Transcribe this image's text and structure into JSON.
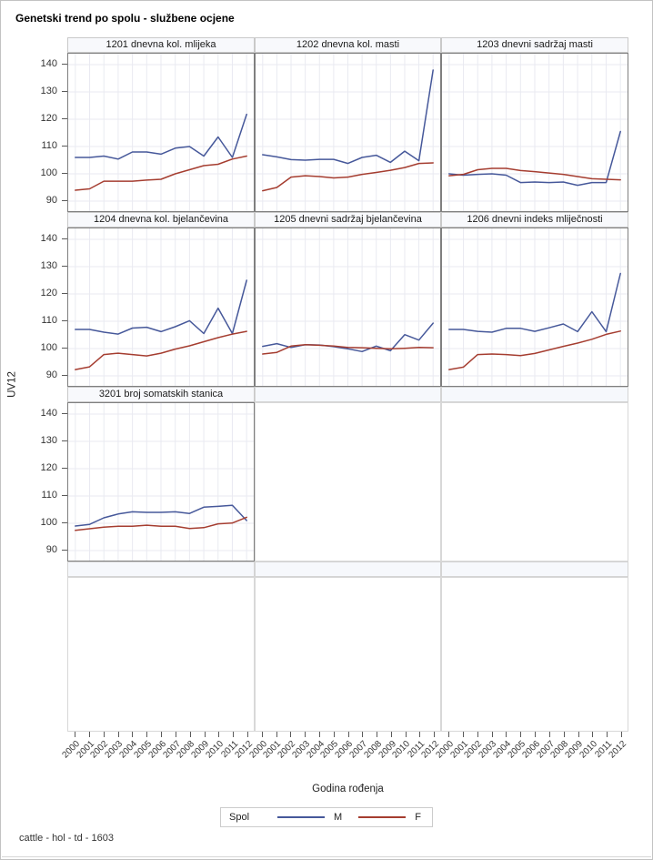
{
  "title": "Genetski trend po spolu - službene ocjene",
  "footer": "cattle - hol - td - 1603",
  "y_axis": {
    "label": "UV12",
    "ticks": [
      140,
      130,
      120,
      110,
      100,
      90
    ]
  },
  "x_axis": {
    "label": "Godina rođenja",
    "years": [
      "2000",
      "2001",
      "2002",
      "2003",
      "2004",
      "2005",
      "2006",
      "2007",
      "2008",
      "2009",
      "2010",
      "2011",
      "2012"
    ]
  },
  "legend": {
    "title": "Spol",
    "entries": [
      {
        "label": "M",
        "color": "#46589A"
      },
      {
        "label": "F",
        "color": "#A53D30"
      }
    ]
  },
  "colors": {
    "series_m": "#46589A",
    "series_f": "#A53D30",
    "gridline": "#e9eaf1",
    "panel_border": "#7f7f7f",
    "header_bg": "#f8f9fc",
    "tick": "#5a5a5a"
  },
  "chart_data": {
    "type": "line",
    "layout": "panel-grid 3 columns x 4 rows (5 empty cells)",
    "categories": [
      "2000",
      "2001",
      "2002",
      "2003",
      "2004",
      "2005",
      "2006",
      "2007",
      "2008",
      "2009",
      "2010",
      "2011",
      "2012"
    ],
    "xlabel": "Godina rođenja",
    "ylabel": "UV12",
    "ylim": [
      85.7,
      144
    ],
    "yticks": [
      90,
      100,
      110,
      120,
      130,
      140
    ],
    "grid": true,
    "legend_position": "bottom",
    "panels": [
      {
        "title": "1201 dnevna kol. mlijeka",
        "grid_pos": [
          0,
          0
        ],
        "series": [
          {
            "name": "M",
            "color": "#46589A",
            "values": [
              106,
              106,
              106.5,
              105.4,
              108,
              108,
              107.2,
              109.4,
              110,
              106.5,
              113.5,
              106,
              121.8
            ]
          },
          {
            "name": "F",
            "color": "#A53D30",
            "values": [
              94,
              94.5,
              97.3,
              97.3,
              97.3,
              97.7,
              98,
              100,
              101.5,
              103,
              103.5,
              105.4,
              106.5
            ]
          }
        ]
      },
      {
        "title": "1202 dnevna kol. masti",
        "grid_pos": [
          0,
          1
        ],
        "series": [
          {
            "name": "M",
            "color": "#46589A",
            "values": [
              107,
              106.2,
              105.2,
              105,
              105.3,
              105.3,
              103.8,
              106,
              106.8,
              104.2,
              108.3,
              104.8,
              138
            ]
          },
          {
            "name": "F",
            "color": "#A53D30",
            "values": [
              93.8,
              95,
              98.8,
              99.3,
              99,
              98.5,
              98.8,
              99.8,
              100.5,
              101.3,
              102.3,
              103.8,
              104
            ]
          }
        ]
      },
      {
        "title": "1203 dnevni sadržaj masti",
        "grid_pos": [
          0,
          2
        ],
        "series": [
          {
            "name": "M",
            "color": "#46589A",
            "values": [
              100,
              99.5,
              99.8,
              100,
              99.5,
              96.8,
              97,
              96.8,
              97,
              95.8,
              96.8,
              96.8,
              115.5
            ]
          },
          {
            "name": "F",
            "color": "#A53D30",
            "values": [
              99.3,
              99.8,
              101.5,
              102,
              102,
              101.2,
              100.8,
              100.3,
              99.8,
              99,
              98.2,
              98,
              97.8
            ]
          }
        ]
      },
      {
        "title": "1204 dnevna kol. bjelančevina",
        "grid_pos": [
          1,
          0
        ],
        "series": [
          {
            "name": "M",
            "color": "#46589A",
            "values": [
              107,
              107,
              106,
              105.3,
              107.5,
              107.8,
              106.2,
              108,
              110.2,
              105.5,
              114.8,
              105.5,
              125
            ]
          },
          {
            "name": "F",
            "color": "#A53D30",
            "values": [
              92.3,
              93.3,
              97.8,
              98.3,
              97.8,
              97.3,
              98.3,
              99.8,
              101,
              102.5,
              104,
              105.3,
              106.3
            ]
          }
        ]
      },
      {
        "title": "1205 dnevni sadržaj bjelančevina",
        "grid_pos": [
          1,
          1
        ],
        "series": [
          {
            "name": "M",
            "color": "#46589A",
            "values": [
              100.8,
              101.8,
              100.4,
              101.4,
              101.3,
              100.7,
              99.9,
              98.9,
              100.9,
              99.2,
              105.1,
              103.1,
              109.3
            ]
          },
          {
            "name": "F",
            "color": "#A53D30",
            "values": [
              98,
              98.6,
              100.9,
              101.4,
              101.2,
              100.9,
              100.4,
              100.3,
              100.1,
              99.9,
              100.1,
              100.4,
              100.3
            ]
          }
        ]
      },
      {
        "title": "1206 dnevni indeks mliječnosti",
        "grid_pos": [
          1,
          2
        ],
        "series": [
          {
            "name": "M",
            "color": "#46589A",
            "values": [
              107,
              107,
              106.3,
              106,
              107.4,
              107.4,
              106.3,
              107.6,
              109,
              106.2,
              113.5,
              106.2,
              127.5
            ]
          },
          {
            "name": "F",
            "color": "#A53D30",
            "values": [
              92.3,
              93.2,
              97.8,
              98,
              97.8,
              97.4,
              98.2,
              99.5,
              100.8,
              102,
              103.4,
              105.2,
              106.4
            ]
          }
        ]
      },
      {
        "title": "3201 broj somatskih stanica",
        "grid_pos": [
          2,
          0
        ],
        "series": [
          {
            "name": "M",
            "color": "#46589A",
            "values": [
              99,
              99.6,
              102,
              103.4,
              104.2,
              104,
              104,
              104.2,
              103.6,
              105.9,
              106.2,
              106.6,
              101
            ]
          },
          {
            "name": "F",
            "color": "#A53D30",
            "values": [
              97.4,
              98,
              98.6,
              98.9,
              98.9,
              99.3,
              98.9,
              98.9,
              98.1,
              98.4,
              99.8,
              100.1,
              102.2
            ]
          }
        ]
      }
    ],
    "empty_cells": [
      [
        2,
        1
      ],
      [
        2,
        2
      ],
      [
        3,
        0
      ],
      [
        3,
        1
      ],
      [
        3,
        2
      ]
    ]
  }
}
